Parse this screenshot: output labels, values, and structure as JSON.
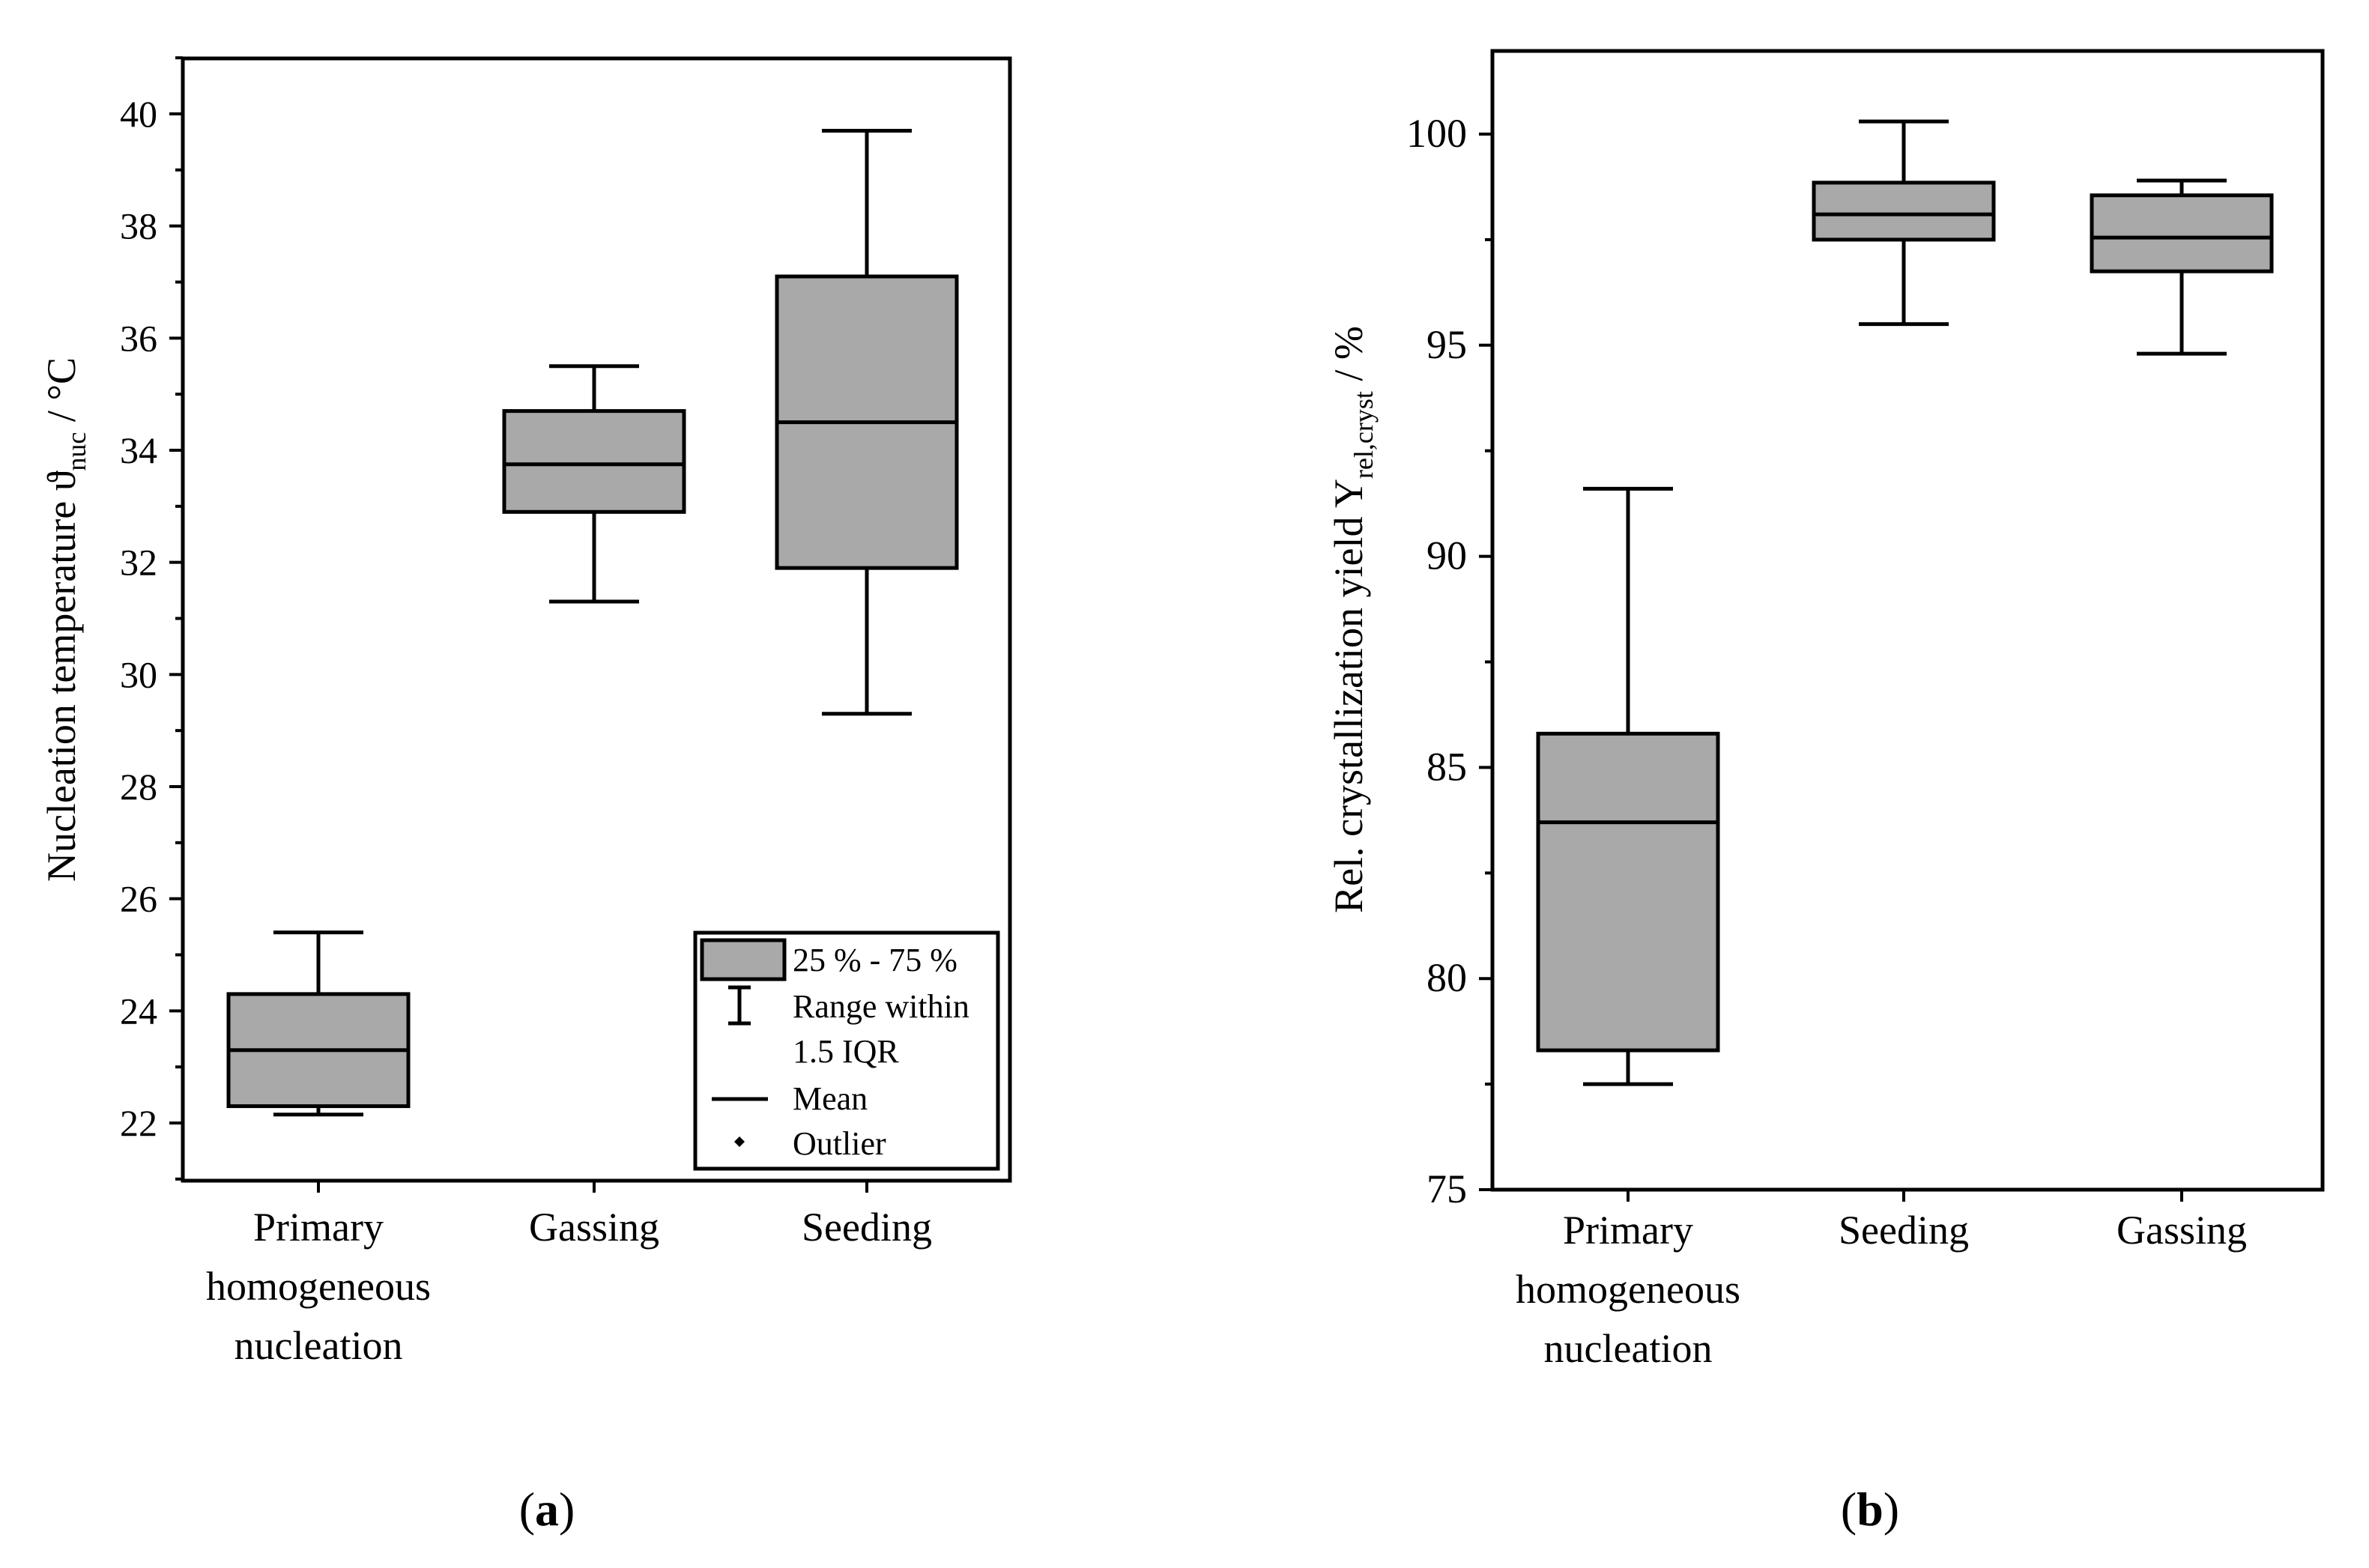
{
  "chart_data": [
    {
      "type": "box",
      "panel_label": "a",
      "ylabel": {
        "main": "Nucleation temperature ϑ",
        "sub": "nuc",
        "tail": " / °C"
      },
      "ylim": [
        21,
        41
      ],
      "yticks": [
        22,
        24,
        26,
        28,
        30,
        32,
        34,
        36,
        38,
        40
      ],
      "ytick_labels": [
        "22",
        "24",
        "26",
        "28",
        "30",
        "32",
        "34",
        "36",
        "38",
        "40"
      ],
      "categories": [
        [
          "Primary",
          "homogeneous",
          "nucleation"
        ],
        [
          "Gassing"
        ],
        [
          "Seeding"
        ]
      ],
      "boxes": [
        {
          "whisker_low": 22.15,
          "q1": 22.3,
          "mean": 23.3,
          "q3": 24.3,
          "whisker_high": 25.4
        },
        {
          "whisker_low": 31.3,
          "q1": 32.9,
          "mean": 33.75,
          "q3": 34.7,
          "whisker_high": 35.5
        },
        {
          "whisker_low": 29.3,
          "q1": 31.9,
          "mean": 34.5,
          "q3": 37.1,
          "whisker_high": 39.7
        }
      ],
      "legend": {
        "position": "bottom-right",
        "entries": [
          {
            "kind": "box",
            "label": "25 % - 75 %"
          },
          {
            "kind": "whisker",
            "label": "Range within",
            "label2": "1.5 IQR"
          },
          {
            "kind": "line",
            "label": "Mean"
          },
          {
            "kind": "dot",
            "label": "Outlier"
          }
        ]
      },
      "colors": {
        "box_fill": "#a9a9a9",
        "line": "#000000"
      }
    },
    {
      "type": "box",
      "panel_label": "b",
      "ylabel": {
        "main": "Rel. crystallization yield Y",
        "sub": "rel,cryst",
        "tail": " / %"
      },
      "ylim": [
        75,
        102
      ],
      "yticks": [
        75,
        80,
        85,
        90,
        95,
        100
      ],
      "ytick_labels": [
        "75",
        "80",
        "85",
        "90",
        "95",
        "100"
      ],
      "categories": [
        [
          "Primary",
          "homogeneous",
          "nucleation"
        ],
        [
          "Seeding"
        ],
        [
          "Gassing"
        ]
      ],
      "boxes": [
        {
          "whisker_low": 77.5,
          "q1": 78.3,
          "mean": 83.7,
          "q3": 85.8,
          "whisker_high": 91.6
        },
        {
          "whisker_low": 95.5,
          "q1": 97.5,
          "mean": 98.1,
          "q3": 98.85,
          "whisker_high": 100.3
        },
        {
          "whisker_low": 94.8,
          "q1": 96.75,
          "mean": 97.55,
          "q3": 98.55,
          "whisker_high": 98.9
        }
      ],
      "colors": {
        "box_fill": "#a9a9a9",
        "line": "#000000"
      }
    }
  ]
}
